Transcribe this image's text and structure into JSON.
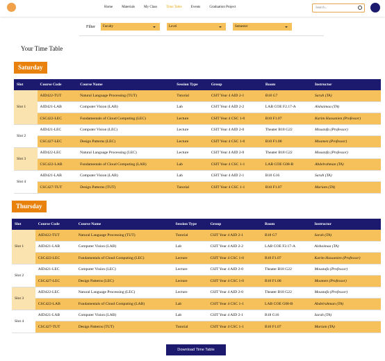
{
  "nav": {
    "items": [
      "Home",
      "Materials",
      "My Class",
      "Time Table",
      "Events",
      "Graduation Project"
    ],
    "active": 3,
    "search_placeholder": "Search.."
  },
  "filter": {
    "label": "Filter",
    "dropdowns": [
      "Faculty",
      "Level",
      "Semester"
    ]
  },
  "heading": "Your Time Table",
  "table_header": [
    "Slot",
    "Course Code",
    "Course Name",
    "Session Type",
    "Group",
    "Room",
    "Instructor"
  ],
  "days": [
    {
      "name": "Saturday",
      "slots": [
        {
          "label": "Slot 1",
          "rows": [
            [
              "AID422-TUT",
              "Natural Language Processing (TUT)",
              "Tutorial",
              "CSIT Year 4 AID 2-1",
              "B18 G7",
              "Sarah (TA)"
            ],
            [
              "AID421-LAB",
              "Computer Vision (LAB)",
              "Lab",
              "CSIT Year 4 AID 2-2",
              "LAB COE F2.17-A",
              "Alshaimaa (TA)"
            ],
            [
              "CSC422-LEC",
              "Fundamentals of Cloud Computing (LEC)",
              "Lecture",
              "CSIT Year 4 CSC 1-0",
              "B10 F1.07",
              "Karim Hassanien (Professor)"
            ]
          ]
        },
        {
          "label": "Slot 2",
          "rows": [
            [
              "AID421-LEC",
              "Computer Vision (LEC)",
              "Lecture",
              "CSIT Year 4 AID 2-0",
              "Theater B18 G22",
              "Moustafa (Professor)"
            ],
            [
              "CSC427-LEC",
              "Design Patterns (LEC)",
              "Lecture",
              "CSIT Year 4 CSC 1-0",
              "B10 F1.08",
              "Moamen (Professor)"
            ]
          ]
        },
        {
          "label": "Slot 3",
          "rows": [
            [
              "AID422-LEC",
              "Natural Language Processing (LEC)",
              "Lecture",
              "CSIT Year 4 AID 2-0",
              "Theater B18 G22",
              "Moustafa (Professor)"
            ],
            [
              "CSC422-LAB",
              "Fundamentals of Cloud Computing (LAB)",
              "Lab",
              "CSIT Year 4 CSC 1-1",
              "LAB COE G08-B",
              "Abdelrahman (TA)"
            ]
          ]
        },
        {
          "label": "Slot 4",
          "rows": [
            [
              "AID421-LAB",
              "Computer Vision (LAB)",
              "Lab",
              "CSIT Year 4 AID 2-1",
              "B18 G16",
              "Sarah (TA)"
            ],
            [
              "CSC427-TUT",
              "Design Patterns (TUT)",
              "Tutorial",
              "CSIT Year 4 CSC 1-1",
              "B10 F1.07",
              "Mariam (TA)"
            ]
          ]
        }
      ]
    },
    {
      "name": "Thursday",
      "slots": [
        {
          "label": "Slot 1",
          "rows": [
            [
              "AID422-TUT",
              "Natural Language Processing (TUT)",
              "Tutorial",
              "CSIT Year 4 AID 2-1",
              "B18 G7",
              "Sarah (TA)"
            ],
            [
              "AID421-LAB",
              "Computer Vision (LAB)",
              "Lab",
              "CSIT Year 4 AID 2-2",
              "LAB COE F2.17-A",
              "Alshaimaa (TA)"
            ],
            [
              "CSC422-LEC",
              "Fundamentals of Cloud Computing (LEC)",
              "Lecture",
              "CSIT Year 4 CSC 1-0",
              "B10 F1.07",
              "Karim Hassanien (Professor)"
            ]
          ]
        },
        {
          "label": "Slot 2",
          "rows": [
            [
              "AID421-LEC",
              "Computer Vision (LEC)",
              "Lecture",
              "CSIT Year 4 AID 2-0",
              "Theater B18 G22",
              "Moustafa (Professor)"
            ],
            [
              "CSC427-LEC",
              "Design Patterns (LEC)",
              "Lecture",
              "CSIT Year 4 CSC 1-0",
              "B10 F1.08",
              "Moamen (Professor)"
            ]
          ]
        },
        {
          "label": "Slot 3",
          "rows": [
            [
              "AID422-LEC",
              "Natural Language Processing (LEC)",
              "Lecture",
              "CSIT Year 4 AID 2-0",
              "Theater B18 G22",
              "Moustafa (Professor)"
            ],
            [
              "CSC422-LAB",
              "Fundamentals of Cloud Computing (LAB)",
              "Lab",
              "CSIT Year 4 CSC 1-1",
              "LAB COE G08-B",
              "Abdelrahman (TA)"
            ]
          ]
        },
        {
          "label": "Slot 4",
          "rows": [
            [
              "AID421-LAB",
              "Computer Vision (LAB)",
              "Lab",
              "CSIT Year 4 AID 2-1",
              "B18 G16",
              "Sarah (TA)"
            ],
            [
              "CSC427-TUT",
              "Design Patterns (TUT)",
              "Tutorial",
              "CSIT Year 4 CSC 1-1",
              "B10 F1.07",
              "Mariam (TA)"
            ]
          ]
        }
      ]
    }
  ],
  "download_button": "Download Time Table"
}
